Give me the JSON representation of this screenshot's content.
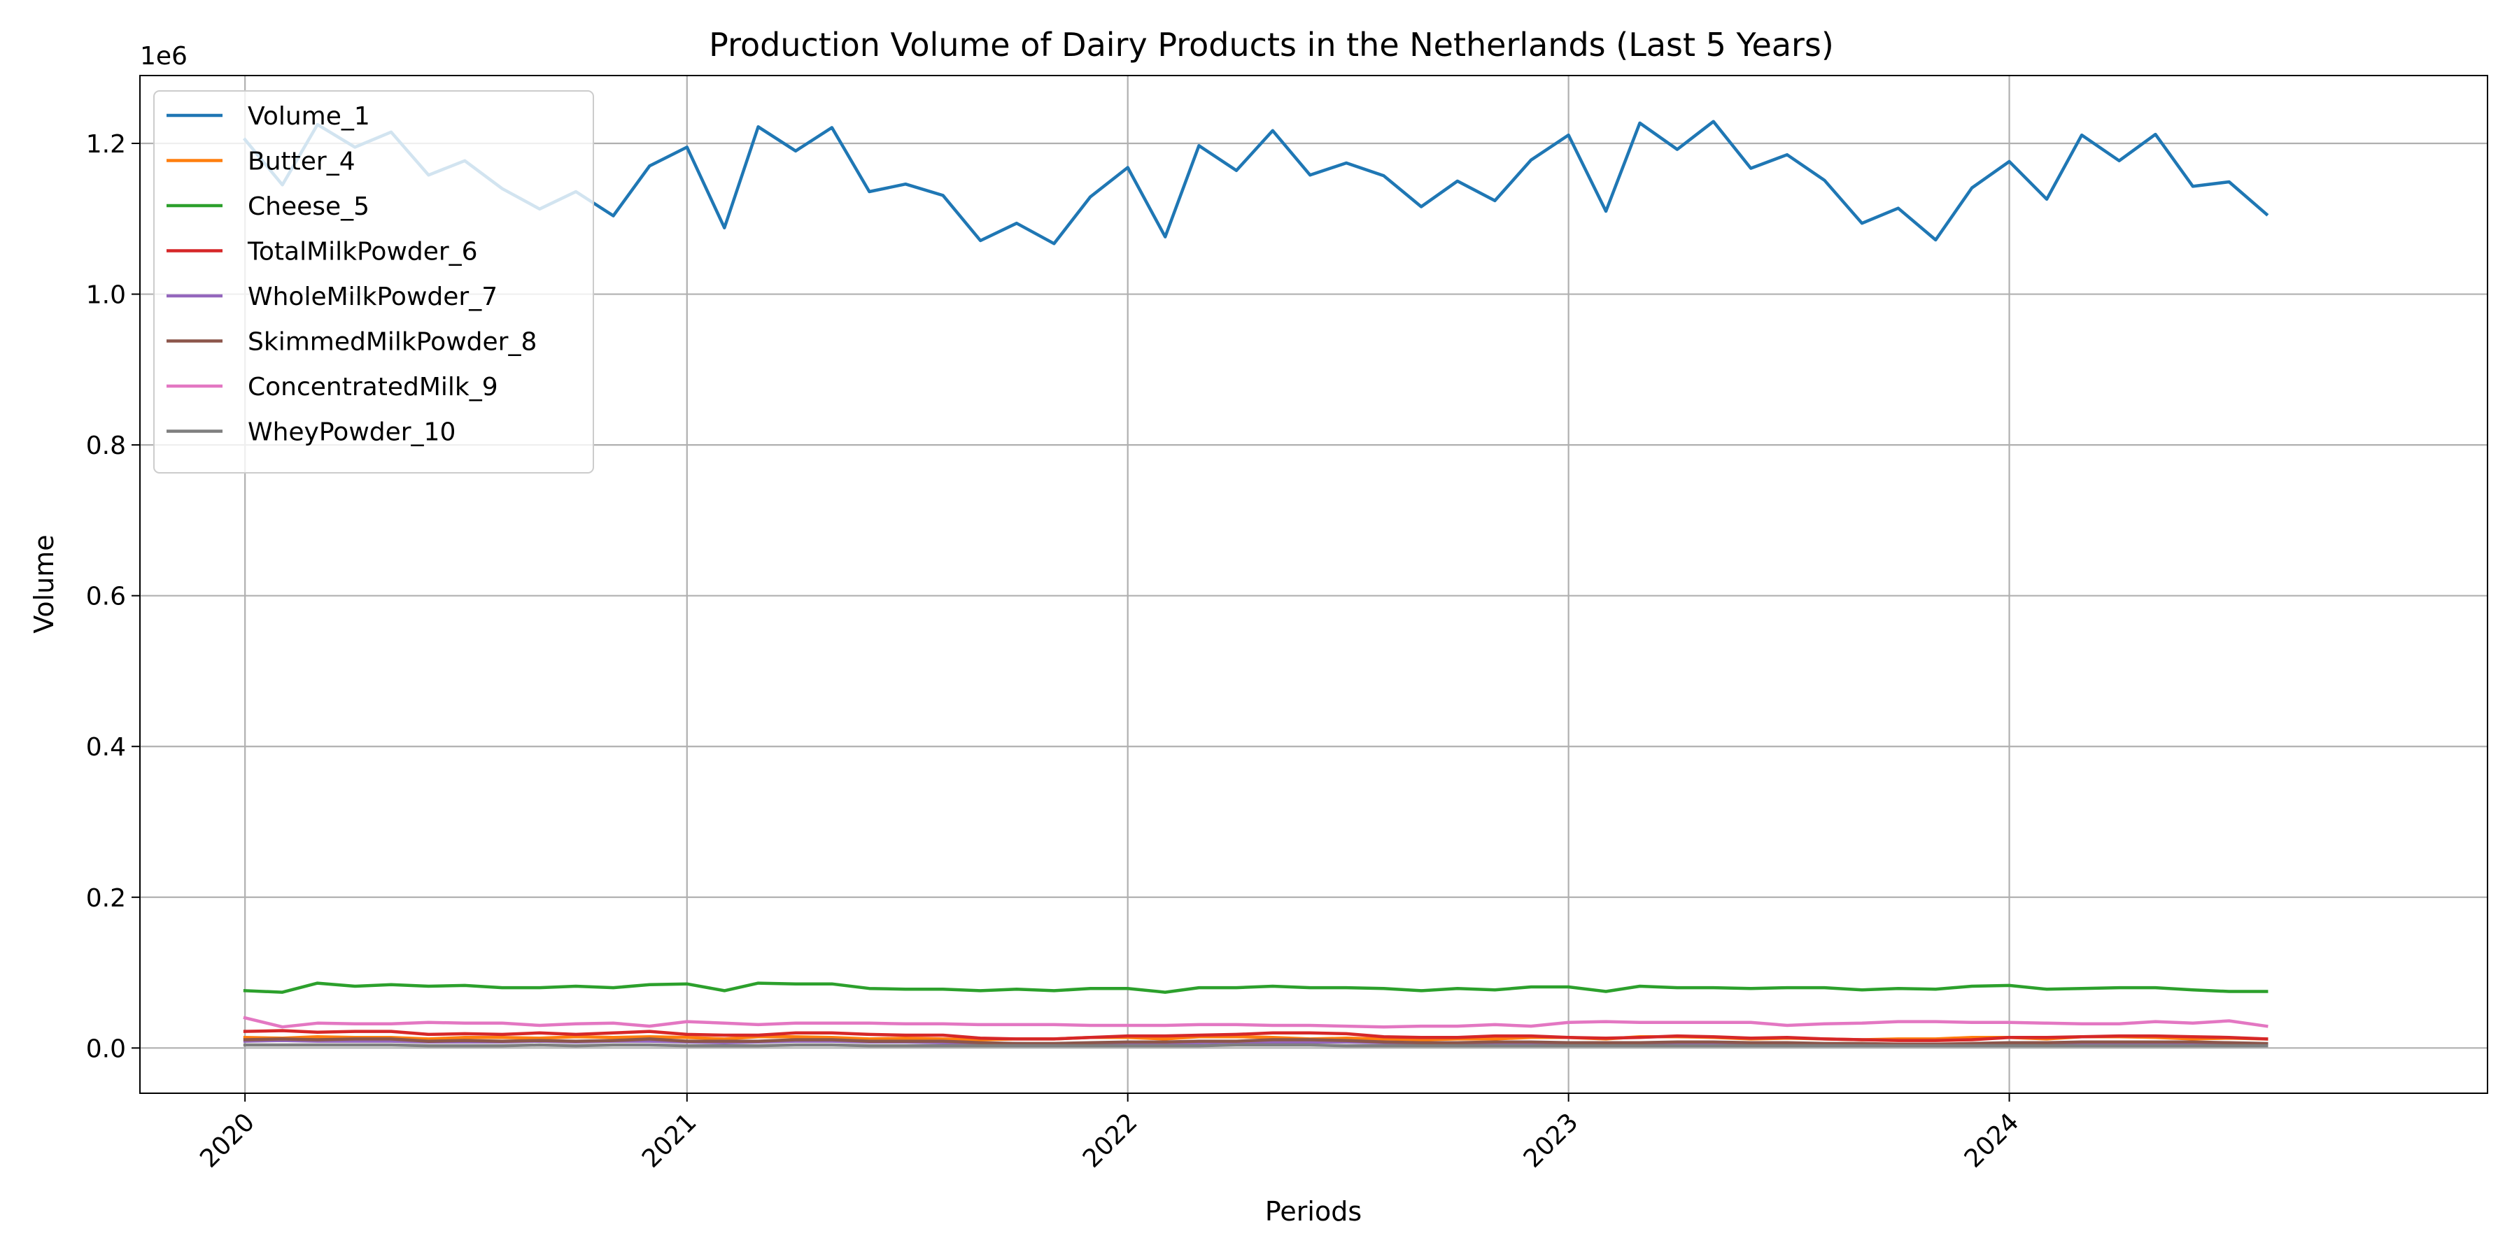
{
  "chart_data": {
    "type": "line",
    "title": "Production Volume of Dairy Products in the Netherlands (Last 5 Years)",
    "xlabel": "Periods",
    "ylabel": "Volume",
    "y_offset_text": "1e6",
    "x_tick_labels": [
      "2020",
      "2021",
      "2022",
      "2023",
      "2024"
    ],
    "y_ticks": [
      0.0,
      0.2,
      0.4,
      0.6,
      0.8,
      1.0,
      1.2
    ],
    "y_tick_labels": [
      "0.0",
      "0.2",
      "0.4",
      "0.6",
      "0.8",
      "1.0",
      "1.2"
    ],
    "xlim": [
      "2019-10-06",
      "2025-01-31"
    ],
    "ylim": [
      -60000,
      1290000
    ],
    "grid": true,
    "legend_position": "top-left",
    "x": [
      "2020-01",
      "2020-02",
      "2020-03",
      "2020-04",
      "2020-05",
      "2020-06",
      "2020-07",
      "2020-08",
      "2020-09",
      "2020-10",
      "2020-11",
      "2020-12",
      "2021-01",
      "2021-02",
      "2021-03",
      "2021-04",
      "2021-05",
      "2021-06",
      "2021-07",
      "2021-08",
      "2021-09",
      "2021-10",
      "2021-11",
      "2021-12",
      "2022-01",
      "2022-02",
      "2022-03",
      "2022-04",
      "2022-05",
      "2022-06",
      "2022-07",
      "2022-08",
      "2022-09",
      "2022-10",
      "2022-11",
      "2022-12",
      "2023-01",
      "2023-02",
      "2023-03",
      "2023-04",
      "2023-05",
      "2023-06",
      "2023-07",
      "2023-08",
      "2023-09",
      "2023-10",
      "2023-11",
      "2023-12",
      "2024-01",
      "2024-02",
      "2024-03",
      "2024-04",
      "2024-05",
      "2024-06",
      "2024-07",
      "2024-08"
    ],
    "series": [
      {
        "name": "Volume_1",
        "color": "#1f77b4",
        "values": [
          1205000,
          1145000,
          1225000,
          1195000,
          1215000,
          1158000,
          1177000,
          1140000,
          1113000,
          1136000,
          1104000,
          1170000,
          1195000,
          1088000,
          1222000,
          1190000,
          1221000,
          1136000,
          1146000,
          1131000,
          1071000,
          1094000,
          1067000,
          1129000,
          1168000,
          1076000,
          1197000,
          1164000,
          1217000,
          1158000,
          1174000,
          1157000,
          1116000,
          1150000,
          1124000,
          1178000,
          1211000,
          1110000,
          1227000,
          1192000,
          1229000,
          1167000,
          1185000,
          1151000,
          1094000,
          1114000,
          1072000,
          1141000,
          1176000,
          1126000,
          1211000,
          1177000,
          1212000,
          1143000,
          1149000,
          1106000
        ]
      },
      {
        "name": "Butter_4",
        "color": "#ff7f0e",
        "values": [
          14000,
          13000,
          15000,
          14000,
          14000,
          12000,
          14000,
          14000,
          13000,
          15000,
          14000,
          15000,
          14000,
          12000,
          15000,
          15000,
          14000,
          12000,
          13000,
          12000,
          11000,
          12000,
          12000,
          14000,
          14000,
          12000,
          15000,
          15000,
          14000,
          12000,
          13000,
          12000,
          11000,
          12000,
          12000,
          14000,
          14000,
          12000,
          15000,
          15000,
          14000,
          12000,
          13000,
          12000,
          11000,
          12000,
          12000,
          14000,
          14000,
          12000,
          15000,
          15000,
          14000,
          12000,
          13000,
          12000
        ]
      },
      {
        "name": "Cheese_5",
        "color": "#2ca02c",
        "values": [
          76000,
          74000,
          86000,
          82000,
          84000,
          82000,
          83000,
          80000,
          80000,
          82000,
          80000,
          84000,
          85000,
          76000,
          86000,
          85000,
          85000,
          79000,
          78000,
          78000,
          76000,
          78000,
          76000,
          79000,
          79000,
          74000,
          80000,
          80000,
          82000,
          80000,
          80000,
          79000,
          76000,
          79000,
          77000,
          81000,
          81000,
          75000,
          82000,
          80000,
          80000,
          79000,
          80000,
          80000,
          77000,
          79000,
          78000,
          82000,
          83000,
          78000,
          79000,
          80000,
          80000,
          77000,
          75000,
          75000
        ]
      },
      {
        "name": "TotalMilkPowder_6",
        "color": "#d62728",
        "values": [
          22000,
          23000,
          21000,
          22000,
          22000,
          18000,
          19000,
          18000,
          20000,
          18000,
          20000,
          22000,
          18000,
          17000,
          17000,
          20000,
          20000,
          18000,
          17000,
          17000,
          13000,
          12000,
          12000,
          14000,
          16000,
          16000,
          17000,
          18000,
          20000,
          20000,
          19000,
          15000,
          14000,
          14000,
          16000,
          16000,
          14000,
          13000,
          14000,
          16000,
          15000,
          13000,
          14000,
          12000,
          11000,
          10000,
          10000,
          11000,
          14000,
          14000,
          15000,
          16000,
          16000,
          15000,
          14000,
          12000
        ]
      },
      {
        "name": "WholeMilkPowder_7",
        "color": "#9467bd",
        "values": [
          9000,
          10000,
          9000,
          9000,
          9000,
          8000,
          8000,
          8000,
          9000,
          8000,
          9000,
          9000,
          8000,
          7000,
          8000,
          9000,
          9000,
          8000,
          8000,
          7000,
          6000,
          6000,
          5000,
          6000,
          7000,
          7000,
          7000,
          8000,
          8000,
          8000,
          8000,
          7000,
          6000,
          6000,
          7000,
          7000,
          6000,
          6000,
          6000,
          7000,
          7000,
          6000,
          6000,
          5000,
          5000,
          5000,
          5000,
          5000,
          6000,
          6000,
          7000,
          7000,
          7000,
          6000,
          6000,
          5000
        ]
      },
      {
        "name": "SkimmedMilkPowder_8",
        "color": "#8c564b",
        "values": [
          11000,
          12000,
          11000,
          12000,
          12000,
          9000,
          10000,
          9000,
          10000,
          9000,
          10000,
          12000,
          9000,
          9000,
          9000,
          11000,
          11000,
          9000,
          9000,
          9000,
          7000,
          6000,
          6000,
          7000,
          8000,
          8000,
          9000,
          9000,
          11000,
          11000,
          10000,
          8000,
          7000,
          7000,
          8000,
          8000,
          7000,
          7000,
          7000,
          8000,
          8000,
          7000,
          7000,
          6000,
          6000,
          5000,
          5000,
          6000,
          7000,
          7000,
          8000,
          8000,
          8000,
          8000,
          7000,
          6000
        ]
      },
      {
        "name": "ConcentratedMilk_9",
        "color": "#e377c2",
        "values": [
          40000,
          28000,
          33000,
          32000,
          32000,
          34000,
          33000,
          33000,
          30000,
          32000,
          33000,
          29000,
          35000,
          33000,
          31000,
          33000,
          33000,
          33000,
          32000,
          32000,
          31000,
          31000,
          31000,
          30000,
          30000,
          30000,
          31000,
          31000,
          30000,
          30000,
          29000,
          28000,
          29000,
          29000,
          31000,
          29000,
          34000,
          35000,
          34000,
          34000,
          34000,
          34000,
          30000,
          32000,
          33000,
          35000,
          35000,
          34000,
          34000,
          33000,
          32000,
          32000,
          35000,
          33000,
          36000,
          29000
        ]
      },
      {
        "name": "WheyPowder_10",
        "color": "#7f7f7f",
        "values": [
          4000,
          4000,
          4000,
          4000,
          4000,
          3000,
          3000,
          3000,
          4000,
          3000,
          4000,
          4000,
          3000,
          3000,
          3000,
          4000,
          4000,
          3000,
          3000,
          3000,
          3000,
          3000,
          3000,
          3000,
          3000,
          3000,
          3000,
          4000,
          4000,
          4000,
          3000,
          3000,
          3000,
          3000,
          3000,
          3000,
          3000,
          3000,
          3000,
          3000,
          3000,
          3000,
          3000,
          3000,
          3000,
          3000,
          3000,
          3000,
          3000,
          3000,
          3000,
          3000,
          3000,
          3000,
          3000,
          3000
        ]
      }
    ]
  }
}
